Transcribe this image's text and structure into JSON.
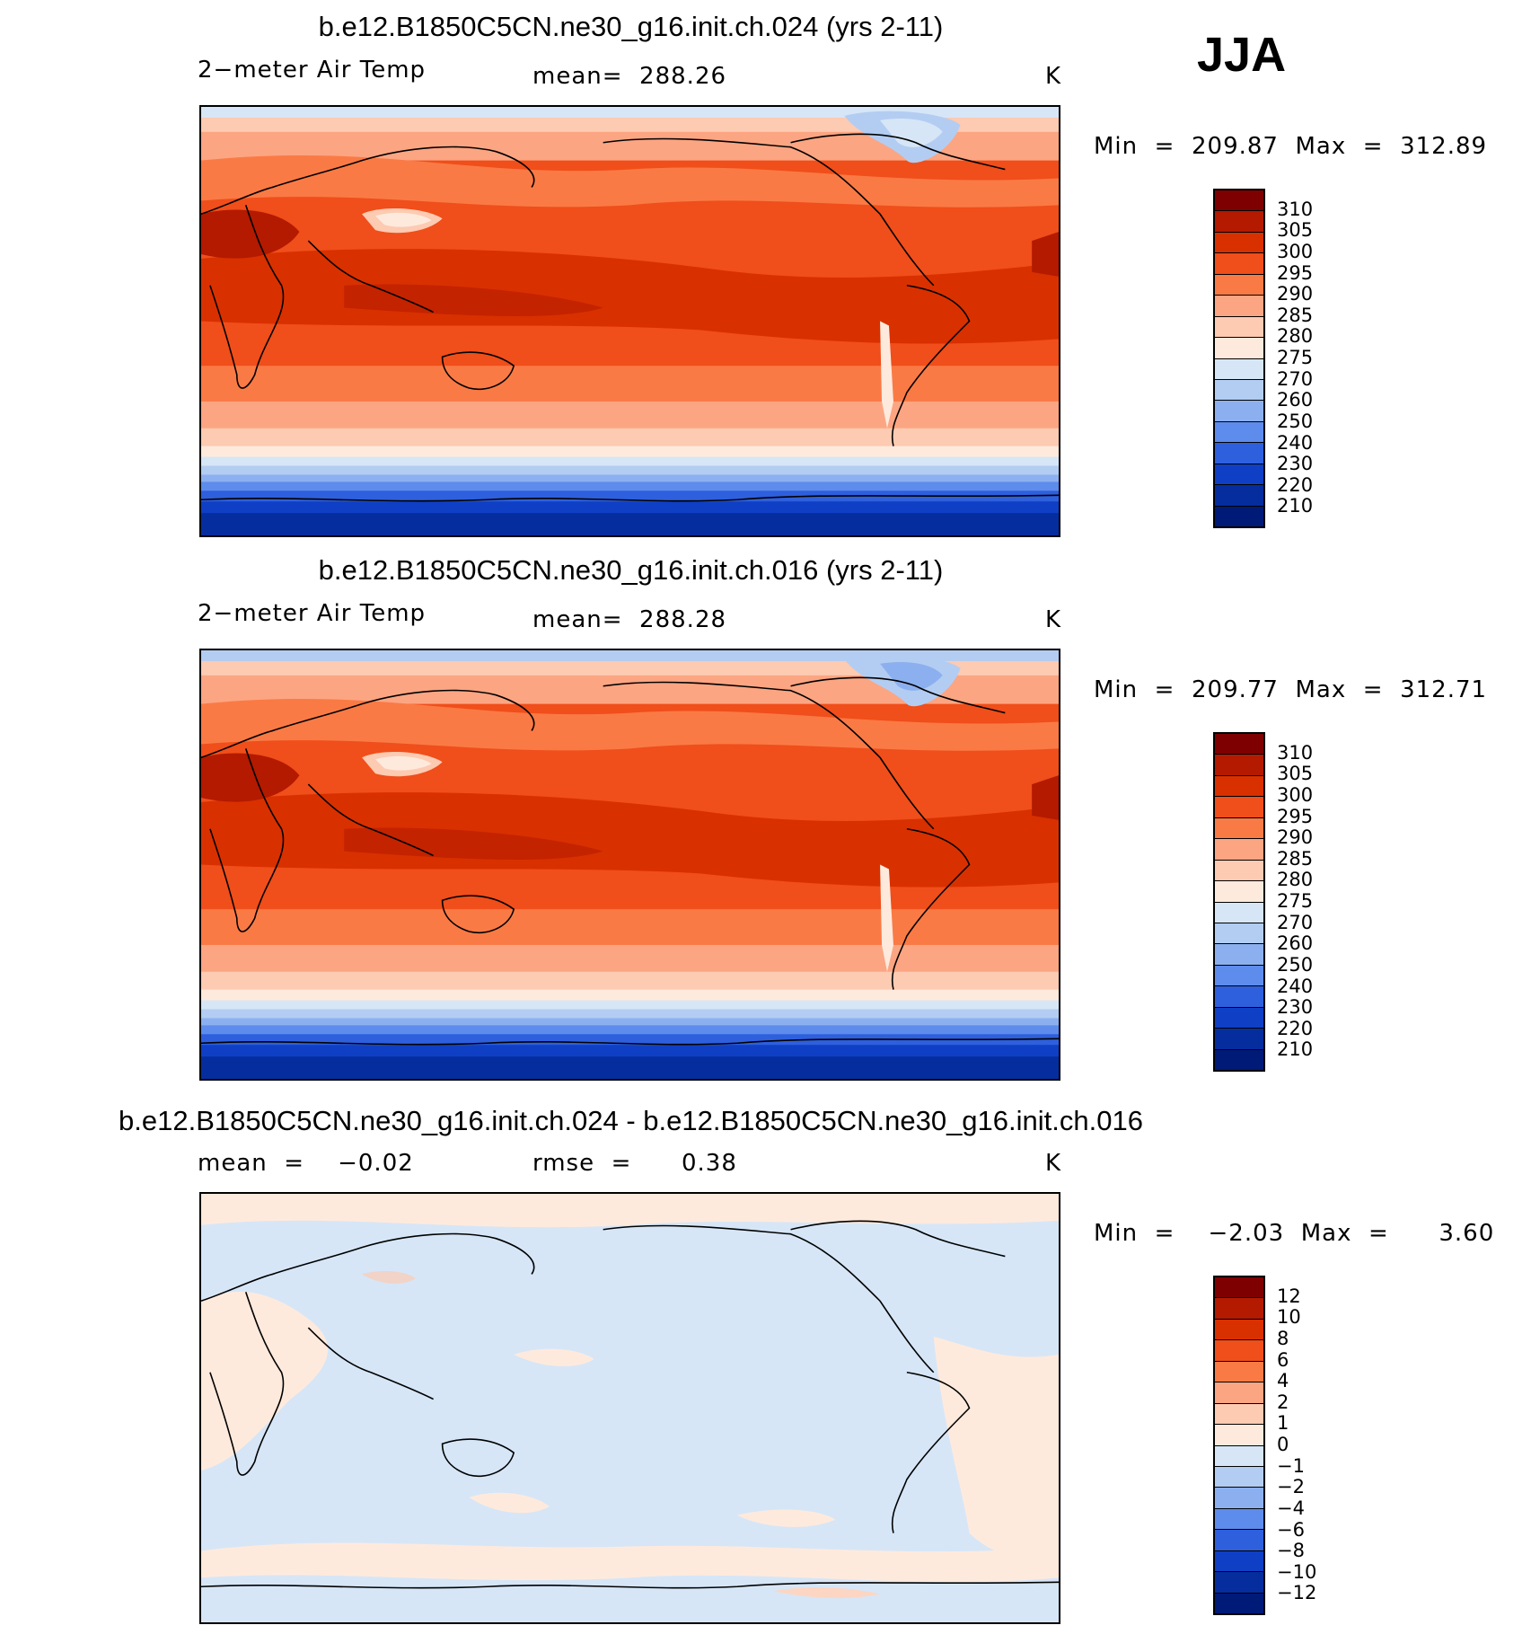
{
  "season": "JJA",
  "panels": [
    {
      "id": "case1",
      "title": "b.e12.B1850C5CN.ne30_g16.init.ch.024 (yrs 2-11)",
      "left_label": "2−meter Air Temp",
      "center_label": "mean=  288.26",
      "units": "K",
      "minmax": "Min  =  209.87  Max  =  312.89",
      "colorbar": {
        "levels": [
          "310",
          "305",
          "300",
          "295",
          "290",
          "285",
          "280",
          "275",
          "270",
          "260",
          "250",
          "240",
          "230",
          "220",
          "210"
        ],
        "colors": [
          "#7f0000",
          "#b31a00",
          "#d93000",
          "#f04e1a",
          "#fa7a45",
          "#fca582",
          "#fdcab2",
          "#feeadd",
          "#d6e6f7",
          "#b3cdf2",
          "#8cb0ef",
          "#5e8cec",
          "#2e5fdd",
          "#0f3fc4",
          "#062d9e",
          "#001a78"
        ]
      }
    },
    {
      "id": "case2",
      "title": "b.e12.B1850C5CN.ne30_g16.init.ch.016 (yrs 2-11)",
      "left_label": "2−meter Air Temp",
      "center_label": "mean=  288.28",
      "units": "K",
      "minmax": "Min  =  209.77  Max  =  312.71",
      "colorbar": {
        "levels": [
          "310",
          "305",
          "300",
          "295",
          "290",
          "285",
          "280",
          "275",
          "270",
          "260",
          "250",
          "240",
          "230",
          "220",
          "210"
        ],
        "colors": [
          "#7f0000",
          "#b31a00",
          "#d93000",
          "#f04e1a",
          "#fa7a45",
          "#fca582",
          "#fdcab2",
          "#feeadd",
          "#d6e6f7",
          "#b3cdf2",
          "#8cb0ef",
          "#5e8cec",
          "#2e5fdd",
          "#0f3fc4",
          "#062d9e",
          "#001a78"
        ]
      }
    },
    {
      "id": "diff",
      "title": "b.e12.B1850C5CN.ne30_g16.init.ch.024 - b.e12.B1850C5CN.ne30_g16.init.ch.016",
      "left_label": "mean  =    −0.02",
      "center_label": "rmse  =      0.38",
      "units": "K",
      "minmax": "Min  =    −2.03  Max  =      3.60",
      "colorbar": {
        "levels": [
          "12",
          "10",
          "8",
          "6",
          "4",
          "2",
          "1",
          "0",
          "−1",
          "−2",
          "−4",
          "−6",
          "−8",
          "−10",
          "−12"
        ],
        "colors": [
          "#7f0000",
          "#b31a00",
          "#d93000",
          "#f04e1a",
          "#fa7a45",
          "#fca582",
          "#fdcab2",
          "#feeadd",
          "#d6e6f7",
          "#b3cdf2",
          "#8cb0ef",
          "#5e8cec",
          "#2e5fdd",
          "#0f3fc4",
          "#062d9e",
          "#001a78"
        ]
      }
    }
  ]
}
